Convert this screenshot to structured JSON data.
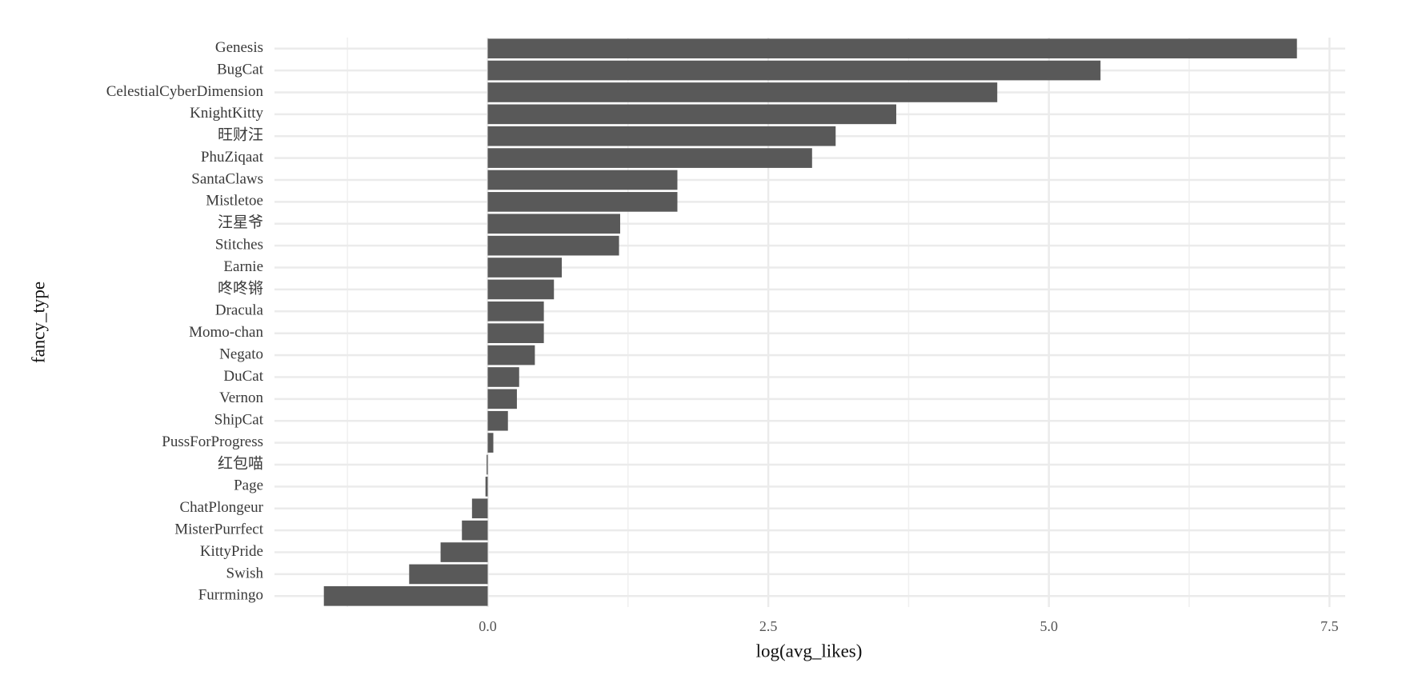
{
  "chart_data": {
    "type": "barh",
    "x_label": "log(avg_likes)",
    "y_label": "fancy_type",
    "categories": [
      "Genesis",
      "BugCat",
      "CelestialCyberDimension",
      "KnightKitty",
      "旺财汪",
      "PhuZiqaat",
      "SantaClaws",
      "Mistletoe",
      "汪星爷",
      "Stitches",
      "Earnie",
      "咚咚锵",
      "Dracula",
      "Momo-chan",
      "Negato",
      "DuCat",
      "Vernon",
      "ShipCat",
      "PussForProgress",
      "红包喵",
      "Page",
      "ChatPlongeur",
      "MisterPurrfect",
      "KittyPride",
      "Swish",
      "Furrmingo"
    ],
    "values": [
      7.21,
      5.46,
      4.54,
      3.64,
      3.1,
      2.89,
      1.69,
      1.69,
      1.18,
      1.17,
      0.66,
      0.59,
      0.5,
      0.5,
      0.42,
      0.28,
      0.26,
      0.18,
      0.05,
      -0.01,
      -0.02,
      -0.14,
      -0.23,
      -0.42,
      -0.7,
      -1.46
    ],
    "color": "#595959",
    "xlim": [
      -1.9,
      7.64
    ],
    "xticks": [
      {
        "value": 0,
        "label": "0.0"
      },
      {
        "value": 2.5,
        "label": "2.5"
      },
      {
        "value": 5,
        "label": "5.0"
      },
      {
        "value": 7.5,
        "label": "7.5"
      }
    ],
    "x_minor_ticks": [
      -1.25,
      1.25,
      3.75,
      6.25
    ],
    "grid": true
  }
}
